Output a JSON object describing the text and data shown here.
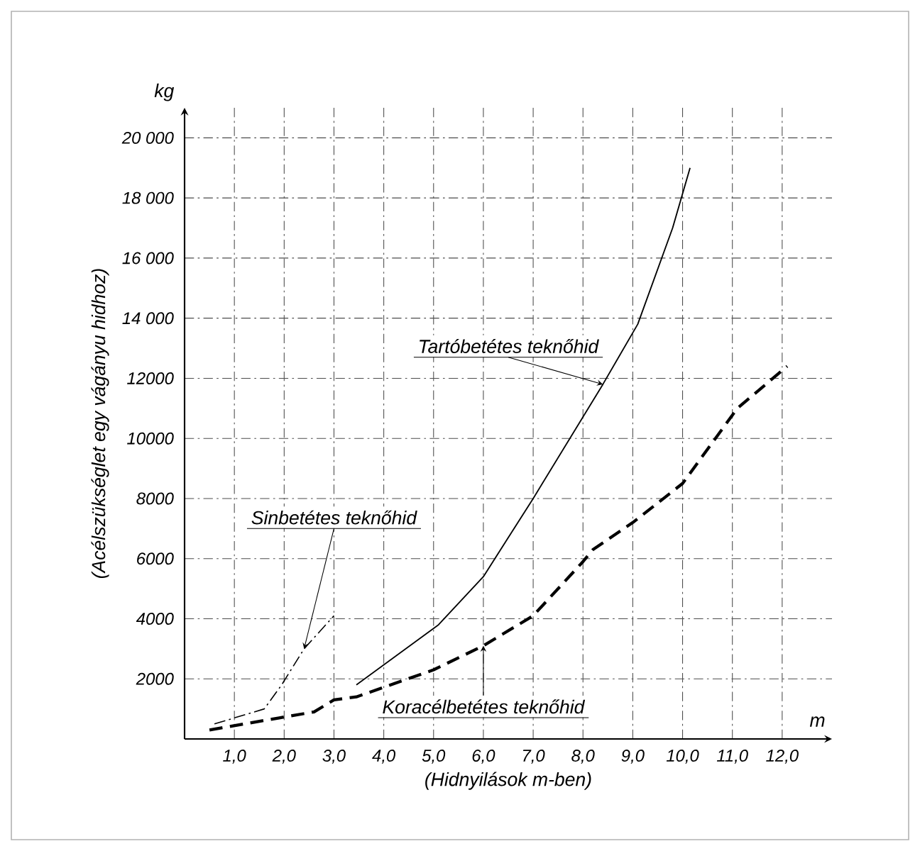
{
  "chart_data": {
    "type": "line",
    "xlabel": "(Hidnyilások m-ben)",
    "ylabel": "(Acélszükséglet egy vágányu hidhoz)",
    "annotations": [
      "kg",
      "m"
    ],
    "xlim": [
      0,
      13
    ],
    "ylim": [
      0,
      21000
    ],
    "xticks": [
      {
        "value": 1,
        "label": "1,0"
      },
      {
        "value": 2,
        "label": "2,0"
      },
      {
        "value": 3,
        "label": "3,0"
      },
      {
        "value": 4,
        "label": "4,0"
      },
      {
        "value": 5,
        "label": "5,0"
      },
      {
        "value": 6,
        "label": "6,0"
      },
      {
        "value": 7,
        "label": "7,0"
      },
      {
        "value": 8,
        "label": "8,0"
      },
      {
        "value": 9,
        "label": "9,0"
      },
      {
        "value": 10,
        "label": "10,0"
      },
      {
        "value": 11,
        "label": "11,0"
      },
      {
        "value": 12,
        "label": "12,0"
      }
    ],
    "yticks": [
      2000,
      4000,
      6000,
      8000,
      10000,
      12000,
      {
        "value": 14000,
        "label": "14 000"
      },
      {
        "value": 16000,
        "label": "16 000"
      },
      {
        "value": 18000,
        "label": "18 000"
      },
      {
        "value": 20000,
        "label": "20 000"
      }
    ],
    "grid": true,
    "legend": false,
    "marker": "none",
    "series": [
      {
        "name": "Tartóbetétes teknőhid",
        "color": "#000000",
        "line_style": "solid",
        "x": [
          3.45,
          5.1,
          6.0,
          7.0,
          8.4,
          9.1,
          9.8,
          10.15
        ],
        "values": [
          1800,
          3800,
          5400,
          8000,
          11800,
          13800,
          17000,
          19000
        ]
      },
      {
        "name": "Sinbetétes teknőhid",
        "color": "#000000",
        "line_style": "dashed",
        "x": [
          0.6,
          1.6,
          1.95,
          2.4,
          3.0
        ],
        "values": [
          500,
          1000,
          1800,
          3000,
          4100
        ]
      },
      {
        "name": "Koracélbetétes teknőhid",
        "color": "#000000",
        "line_style": "dashed",
        "x": [
          0.5,
          1.9,
          2.6,
          3.0,
          3.45,
          5.0,
          6.0,
          7.0,
          8.0,
          8.2,
          9.0,
          10.0,
          11.1,
          12.1
        ],
        "values": [
          300,
          700,
          900,
          1300,
          1400,
          2300,
          3100,
          4100,
          5900,
          6300,
          7200,
          8500,
          11000,
          12400
        ]
      }
    ]
  }
}
